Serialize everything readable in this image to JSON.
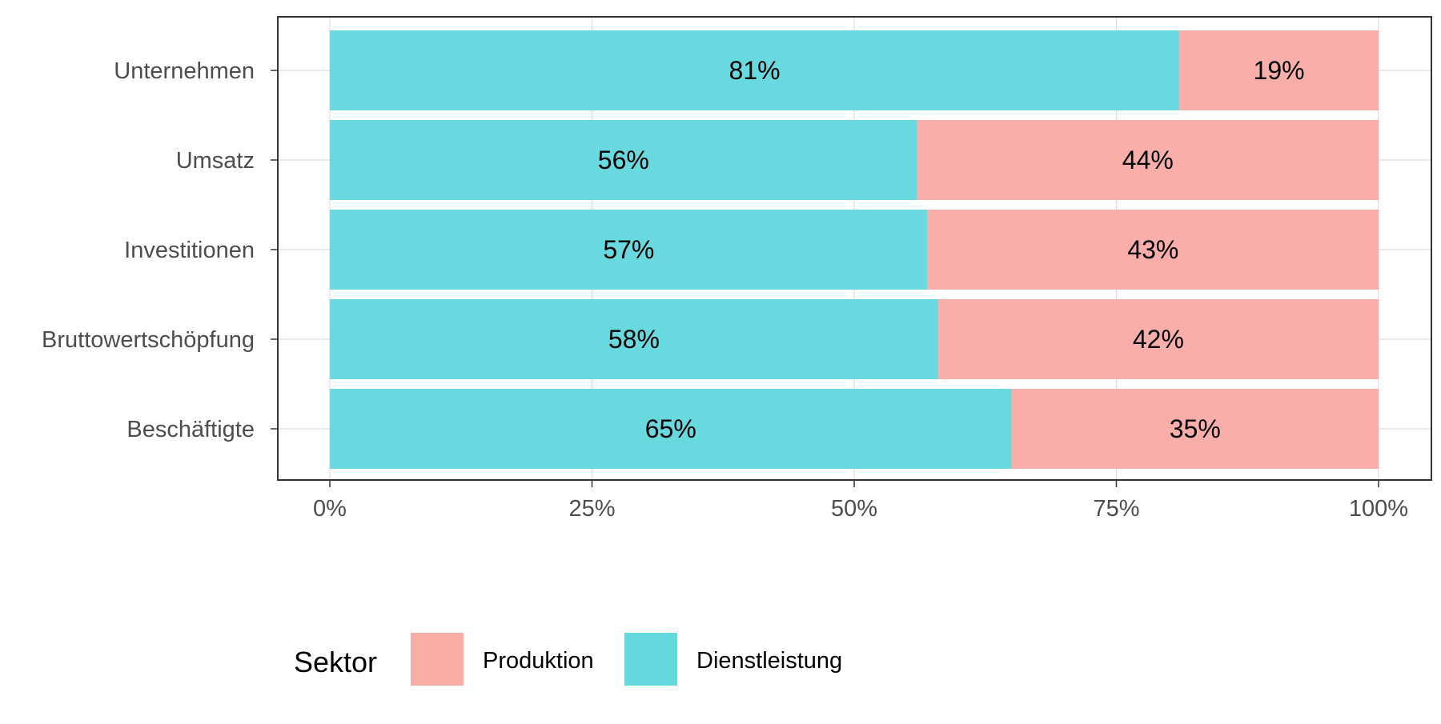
{
  "chart_data": {
    "type": "bar",
    "orientation": "horizontal",
    "stacked": "percent",
    "categories": [
      "Unternehmen",
      "Umsatz",
      "Investitionen",
      "Bruttowertschöpfung",
      "Beschäftigte"
    ],
    "series": [
      {
        "name": "Dienstleistung",
        "values": [
          81,
          56,
          57,
          58,
          65
        ],
        "color": "#63D8DD"
      },
      {
        "name": "Produktion",
        "values": [
          19,
          44,
          43,
          42,
          35
        ],
        "color": "#F9ABA6"
      }
    ],
    "data_labels": {
      "Dienstleistung": [
        "81%",
        "56%",
        "57%",
        "58%",
        "65%"
      ],
      "Produktion": [
        "19%",
        "44%",
        "43%",
        "42%",
        "35%"
      ]
    },
    "x_ticks": [
      "0%",
      "25%",
      "50%",
      "75%",
      "100%"
    ],
    "xlim": [
      0,
      100
    ],
    "title": "",
    "xlabel": "",
    "ylabel": "",
    "grid": true,
    "legend": {
      "title": "Sektor",
      "position": "bottom",
      "entries": [
        {
          "label": "Produktion",
          "color": "#F9ABA6"
        },
        {
          "label": "Dienstleistung",
          "color": "#63D8DD"
        }
      ]
    }
  }
}
